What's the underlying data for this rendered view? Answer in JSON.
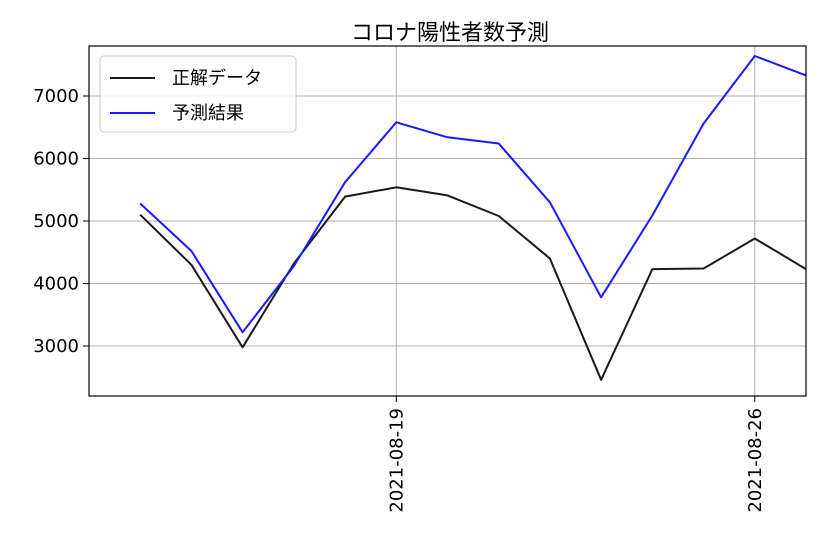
{
  "chart_data": {
    "type": "line",
    "title": "コロナ陽性者数予測",
    "xlabel": "",
    "ylabel": "",
    "x": [
      "2021-08-14",
      "2021-08-15",
      "2021-08-16",
      "2021-08-17",
      "2021-08-18",
      "2021-08-19",
      "2021-08-20",
      "2021-08-21",
      "2021-08-22",
      "2021-08-23",
      "2021-08-24",
      "2021-08-25",
      "2021-08-26",
      "2021-08-27"
    ],
    "x_ticks": [
      "2021-08-19",
      "2021-08-26"
    ],
    "y_ticks": [
      3000,
      4000,
      5000,
      6000,
      7000
    ],
    "xlim": [
      "2021-08-13",
      "2021-08-27"
    ],
    "ylim": [
      2200,
      7800
    ],
    "grid": true,
    "legend_position": "top-left",
    "series": [
      {
        "name": "正解データ",
        "color": "#1a1a1a",
        "values": [
          5100,
          4300,
          2980,
          4320,
          5390,
          5540,
          5410,
          5080,
          4400,
          2460,
          4230,
          4240,
          4720,
          4230
        ]
      },
      {
        "name": "予測結果",
        "color": "#1a1aff",
        "values": [
          5280,
          4520,
          3220,
          4280,
          5620,
          6580,
          6340,
          6240,
          5300,
          3780,
          5090,
          6560,
          7640,
          7330
        ]
      }
    ]
  }
}
